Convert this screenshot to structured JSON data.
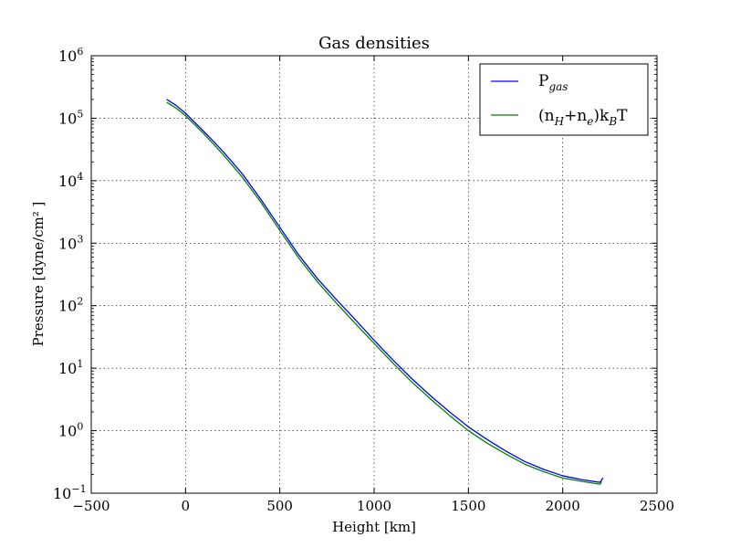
{
  "chart_data": {
    "type": "line",
    "title": "Gas densities",
    "xlabel": "Height [km]",
    "ylabel": "Pressure [dyne/cm² ]",
    "xlim": [
      -500,
      2500
    ],
    "ylim_log10": [
      -1,
      6
    ],
    "yscale": "log",
    "grid": true,
    "legend_position": "top-right",
    "x_ticks": [
      "−500",
      "0",
      "500",
      "1000",
      "1500",
      "2000",
      "2500"
    ],
    "x_tick_values": [
      -500,
      0,
      500,
      1000,
      1500,
      2000,
      2500
    ],
    "y_tick_base": "10",
    "y_tick_exponents": [
      "−1",
      "0",
      "1",
      "2",
      "3",
      "4",
      "5",
      "6"
    ],
    "y_tick_values_log10": [
      -1,
      0,
      1,
      2,
      3,
      4,
      5,
      6
    ],
    "series": [
      {
        "name": "P_gas",
        "legend_main": "P",
        "legend_sub": "gas",
        "color": "#0000ff",
        "x": [
          -100,
          -50,
          0,
          50,
          100,
          150,
          200,
          300,
          400,
          500,
          600,
          700,
          800,
          900,
          1000,
          1100,
          1200,
          1300,
          1400,
          1500,
          1600,
          1700,
          1800,
          1900,
          2000,
          2100,
          2190,
          2200,
          2210,
          2215
        ],
        "y": [
          200000,
          160000,
          120000,
          85000,
          60000,
          42000,
          29000,
          13000,
          5000,
          1800,
          650,
          270,
          125,
          60,
          28,
          13.5,
          6.8,
          3.6,
          2.0,
          1.15,
          0.72,
          0.47,
          0.32,
          0.24,
          0.19,
          0.165,
          0.15,
          0.15,
          0.17,
          0.175
        ]
      },
      {
        "name": "(n_H+n_e)k_BT",
        "legend_parts": [
          "(n",
          "H",
          "+n",
          "e",
          ")k",
          "B",
          "T"
        ],
        "color": "#008000",
        "x": [
          -100,
          -50,
          0,
          50,
          100,
          150,
          200,
          300,
          400,
          500,
          600,
          700,
          800,
          900,
          1000,
          1100,
          1200,
          1300,
          1400,
          1500,
          1600,
          1700,
          1800,
          1900,
          2000,
          2100,
          2190,
          2200,
          2205
        ],
        "y": [
          180000,
          145000,
          110000,
          78000,
          55000,
          38000,
          26000,
          11500,
          4500,
          1600,
          580,
          240,
          110,
          52,
          25,
          12,
          6.0,
          3.2,
          1.75,
          1.0,
          0.63,
          0.42,
          0.29,
          0.22,
          0.175,
          0.155,
          0.14,
          0.14,
          0.155
        ]
      }
    ]
  }
}
